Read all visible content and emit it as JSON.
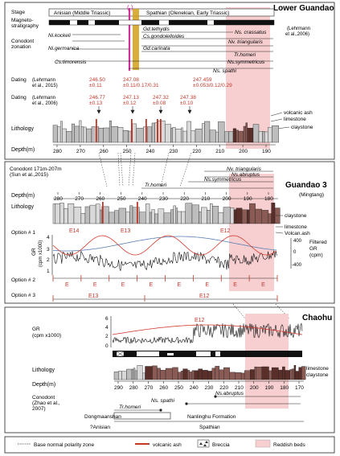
{
  "figure": {
    "panel_a": {
      "title": "Lower Guandao",
      "citation": [
        "(Lehrmann",
        "et al.,2006)"
      ],
      "stage_label": "Stage",
      "stage_anisian": "Anisian (Middle Triassic)",
      "stage_spathian": "Spathian (Olenekian, Early Triassic)",
      "magneto_label": [
        "Magneto-",
        "stratigraphy"
      ],
      "conodont_label": [
        "Conodont",
        "zonation"
      ],
      "taxa_left": [
        "Ni.kockeli",
        "Ni.germanica",
        "Cs.timorensis"
      ],
      "taxa_mid": [
        "Gd.tethydis",
        "Cs.gondolelloides",
        "Gd.carinata"
      ],
      "taxa_right": [
        "Ns. crassatus",
        "Nv. triangularis",
        "Tr.homeri",
        "Ns.symmetricus",
        "Ns. spathi"
      ],
      "dating1_label": [
        "Dating",
        "(Lehrmann",
        "et al., 2015)"
      ],
      "dating1_values": [
        [
          "246.50",
          "±0.11"
        ],
        [
          "247.08",
          "±0.11/0.17/0.31"
        ],
        [
          "247.459",
          "±0.053/0.12/0.29"
        ]
      ],
      "dating2_label": [
        "Dating",
        "(Lehrmann",
        "et al., 2006)"
      ],
      "dating2_values": [
        [
          "246.77",
          "±0.13"
        ],
        [
          "247.13",
          "±0.12"
        ],
        [
          "247.32",
          "±0.08"
        ],
        [
          "247.38",
          "±0.10"
        ]
      ],
      "legend_labels": [
        "volcanic ash",
        "limestone",
        "claystone"
      ],
      "lithology_label": "Lithology",
      "depth_label": "Depth(m)",
      "depth_ticks": [
        "280",
        "270",
        "260",
        "250",
        "240",
        "230",
        "220",
        "210",
        "200",
        "190"
      ]
    },
    "panel_b": {
      "title": "Guandao 3",
      "subtitle": "(Mingtang)",
      "conodont_label": [
        "Conodont 171m-207m",
        "(Sun et al.,2015)"
      ],
      "taxa": [
        "Nv. triangularis",
        "Ns.abruptus",
        "Ns.symmetricus",
        "Tr.homeri"
      ],
      "depth_label": "Depth(m)",
      "depth_ticks": [
        "280",
        "270",
        "260",
        "250",
        "240",
        "230",
        "220",
        "210",
        "200",
        "190",
        "180"
      ],
      "lithology_label": "Lithology",
      "litho_legend": [
        "claystone",
        "limestone",
        "Volcan.ash"
      ],
      "option1_label": "Option # 1",
      "gr_axis_label": "GR",
      "gr_axis_sub": "(cpm x1000)",
      "gr_ticks": [
        "4",
        "3",
        "2",
        "1"
      ],
      "filtered_label": [
        "Filtered",
        "GR",
        "(cpm)"
      ],
      "filtered_ticks": [
        "400",
        "0",
        "-400"
      ],
      "cycle_labels": [
        "E14",
        "E13",
        "E12"
      ],
      "option2_label": "Option # 2",
      "option2_cycles": [
        "E",
        "E",
        "E",
        "E",
        "E",
        "E",
        "E",
        "E"
      ],
      "option3_label": "Option # 3",
      "option3_cycles": [
        "E13",
        "E12"
      ]
    },
    "panel_c": {
      "title": "Chaohu",
      "gr_label": [
        "GR",
        "(cpm x1000)"
      ],
      "gr_ticks": [
        "6",
        "4",
        "2",
        "0"
      ],
      "cycle_label": "E12",
      "lithology_label": "Lithology",
      "litho_legend": [
        "limestone",
        "claystone"
      ],
      "depth_label": "Depth(m)",
      "depth_ticks": [
        "290",
        "280",
        "270",
        "260",
        "250",
        "240",
        "230",
        "220",
        "210",
        "200",
        "190",
        "180",
        "170"
      ],
      "conodont_label": [
        "Conodont",
        "(Zhao et al.,",
        "2007)"
      ],
      "taxa": [
        "Ns.abruptus",
        "Ns. spathi",
        "Tr.homeri"
      ],
      "formation_left": "Dongmaanshan",
      "formation_right": "Nanlinghu Formation",
      "stage_left": "?Anisian",
      "stage_right": "Spathian"
    },
    "legend": {
      "items": [
        "Base normal polarity zone",
        "volcanic ash",
        "Breccia",
        "Reddish beds"
      ]
    },
    "colors": {
      "volcanic_ash": "#c0392b",
      "reddish_beds": "#f7cfd1",
      "magenta_line": "#d0309a",
      "gold_band": "#d4a017",
      "filtered_blue": "#5a7fb5",
      "filtered_red": "#d23b2e",
      "claystone_dark": "#5a2f2a",
      "limestone_grey": "#c8c8c8"
    }
  }
}
